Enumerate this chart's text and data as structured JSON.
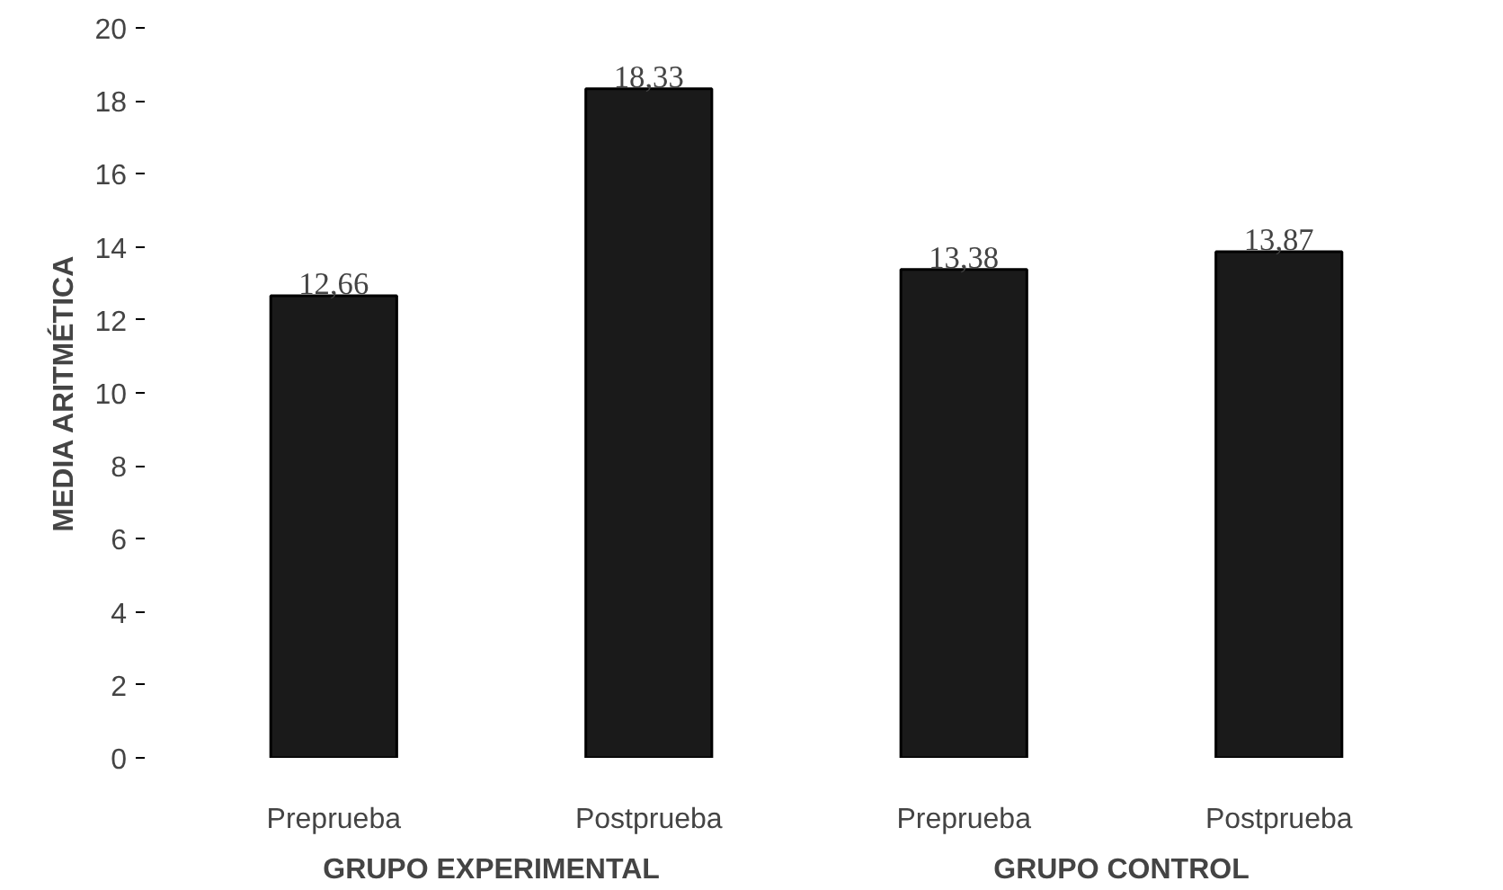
{
  "chart_data": {
    "type": "bar",
    "ylabel": "MEDIA ARITMÉTICA",
    "categories": [
      "Preprueba",
      "Postprueba",
      "Preprueba",
      "Postprueba"
    ],
    "values": [
      12.66,
      18.33,
      13.38,
      13.87
    ],
    "value_labels": [
      "12,66",
      "18,33",
      "13,38",
      "13,87"
    ],
    "color": "#1a1a1a",
    "ylim": [
      0,
      20
    ],
    "yticks": [
      0,
      2,
      4,
      6,
      8,
      10,
      12,
      14,
      16,
      18,
      20
    ],
    "grid": false,
    "annotations": [
      "GRUPO EXPERIMENTAL",
      "GRUPO CONTROL"
    ]
  }
}
